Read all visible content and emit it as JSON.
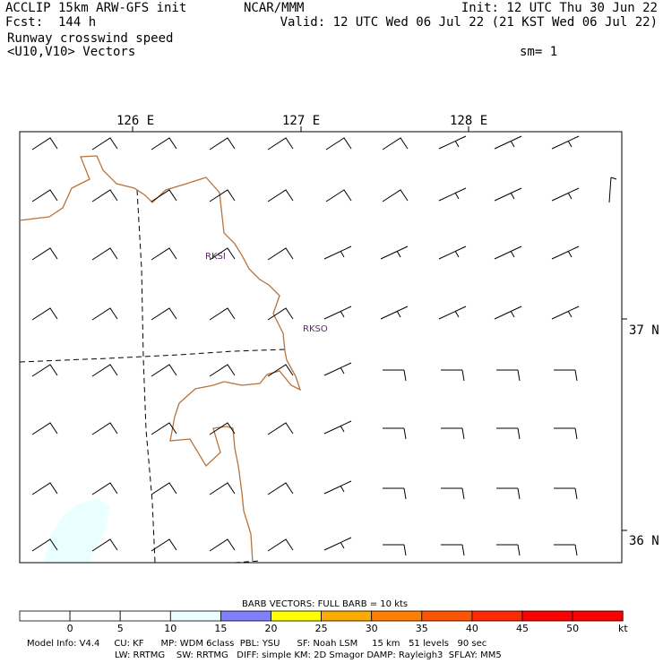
{
  "header": {
    "left1": "ACCLIP 15km ARW-GFS init",
    "left2": "Fcst:  144 h",
    "left3": "Runway crosswind speed",
    "left4": "<U10,V10> Vectors",
    "center": "NCAR/MMM",
    "init": "Init: 12 UTC Thu 30 Jun 22",
    "valid": "Valid: 12 UTC Wed 06 Jul 22 (21 KST Wed 06 Jul 22)",
    "sm": "sm= 1"
  },
  "map": {
    "lon_labels": [
      "126 E",
      "127 E",
      "128 E"
    ],
    "lat_labels": [
      "37 N",
      "36 N"
    ],
    "stations": [
      "RKSI",
      "RKSO"
    ],
    "colors": {
      "coast": "#b8733a",
      "station": "#5a2a6a",
      "shade": "#eaffff"
    }
  },
  "colorbar": {
    "title": "BARB VECTORS:  FULL BARB = 10 kts",
    "ticks": [
      "0",
      "5",
      "10",
      "15",
      "20",
      "25",
      "30",
      "35",
      "40",
      "45",
      "50"
    ],
    "unit": "kt",
    "colors": [
      "#ffffff",
      "#ffffff",
      "#ffffff",
      "#eaffff",
      "#8080ff",
      "#ffff00",
      "#ffaa00",
      "#ff8000",
      "#ff5500",
      "#ff2a00",
      "#ff0000",
      "#ff0000"
    ]
  },
  "footer": {
    "line1": "Model Info: V4.4     CU: KF      MP: WDM 6class  PBL: YSU      SF: Noah LSM     15 km   51 levels   90 sec",
    "line2": "LW: RRTMG    SW: RRTMG   DIFF: simple KM: 2D Smagor DAMP: Rayleigh3  SFLAY: MM5"
  }
}
